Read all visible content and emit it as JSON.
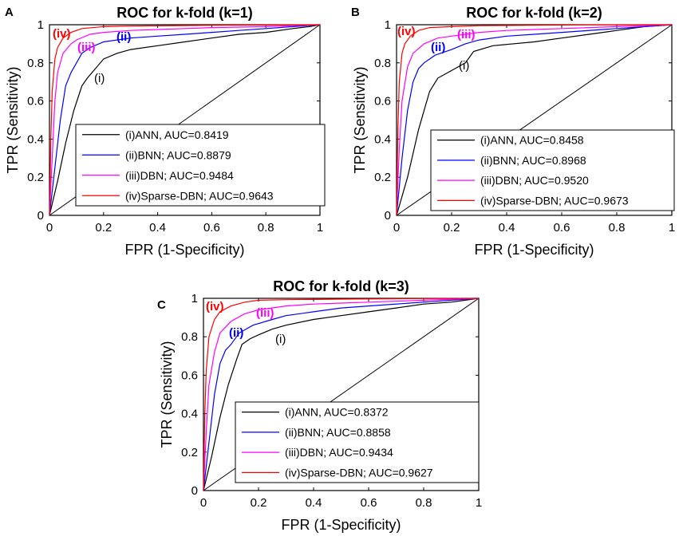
{
  "charts": [
    {
      "panel_label": "A",
      "chart_data": {
        "type": "line",
        "title": "ROC for k-fold (k=1)",
        "xlabel": "FPR (1-Specificity)",
        "ylabel": "TPR (Sensitivity)",
        "xlim": [
          0,
          1
        ],
        "ylim": [
          0,
          1
        ],
        "xticks": [
          "0",
          "0.2",
          "0.4",
          "0.6",
          "0.8",
          "1"
        ],
        "yticks": [
          "0",
          "0.2",
          "0.4",
          "0.6",
          "0.8",
          "1"
        ],
        "legend_position": "bottom-right",
        "series": [
          {
            "name": "(i)ANN, AUC=0.8419",
            "annotation": "(i)",
            "color": "#000000",
            "x": [
              0,
              0.03,
              0.06,
              0.09,
              0.12,
              0.14,
              0.17,
              0.2,
              0.25,
              0.3,
              0.4,
              0.5,
              0.6,
              0.7,
              0.8,
              0.9,
              0.96,
              1.0
            ],
            "y": [
              0,
              0.18,
              0.38,
              0.55,
              0.68,
              0.72,
              0.77,
              0.82,
              0.85,
              0.87,
              0.89,
              0.91,
              0.93,
              0.95,
              0.96,
              0.98,
              0.99,
              1.0
            ]
          },
          {
            "name": "(ii)BNN; AUC=0.8879",
            "annotation": "(ii)",
            "color": "#0000ff",
            "x": [
              0,
              0.02,
              0.04,
              0.06,
              0.08,
              0.1,
              0.12,
              0.15,
              0.2,
              0.3,
              0.4,
              0.5,
              0.6,
              0.7,
              0.8,
              0.9,
              1.0
            ],
            "y": [
              0,
              0.25,
              0.5,
              0.68,
              0.75,
              0.8,
              0.85,
              0.88,
              0.91,
              0.93,
              0.94,
              0.95,
              0.96,
              0.97,
              0.98,
              0.99,
              1.0
            ]
          },
          {
            "name": "(iii)DBN; AUC=0.9484",
            "annotation": "(iii)",
            "color": "#ff00ff",
            "x": [
              0,
              0.01,
              0.02,
              0.03,
              0.05,
              0.08,
              0.1,
              0.15,
              0.2,
              0.3,
              0.4,
              0.5,
              0.6,
              0.8,
              1.0
            ],
            "y": [
              0,
              0.3,
              0.6,
              0.75,
              0.85,
              0.9,
              0.92,
              0.95,
              0.96,
              0.97,
              0.975,
              0.98,
              0.985,
              0.99,
              1.0
            ]
          },
          {
            "name": "(iv)Sparse-DBN; AUC=0.9643",
            "annotation": "(iv)",
            "color": "#ff0000",
            "x": [
              0,
              0.005,
              0.01,
              0.02,
              0.03,
              0.05,
              0.08,
              0.12,
              0.2,
              0.3,
              0.5,
              0.7,
              1.0
            ],
            "y": [
              0,
              0.4,
              0.65,
              0.82,
              0.88,
              0.93,
              0.96,
              0.98,
              0.99,
              0.993,
              0.996,
              0.998,
              1.0
            ]
          }
        ]
      }
    },
    {
      "panel_label": "B",
      "chart_data": {
        "type": "line",
        "title": "ROC for k-fold (k=2)",
        "xlabel": "FPR (1-Specificity)",
        "ylabel": "TPR (Sensitivity)",
        "xlim": [
          0,
          1
        ],
        "ylim": [
          0,
          1
        ],
        "xticks": [
          "0",
          "0.2",
          "0.4",
          "0.6",
          "0.8",
          "1"
        ],
        "yticks": [
          "0",
          "0.2",
          "0.4",
          "0.6",
          "0.8",
          "1"
        ],
        "legend_position": "bottom-right",
        "series": [
          {
            "name": "(i)ANN, AUC=0.8458",
            "annotation": "(i)",
            "color": "#000000",
            "x": [
              0,
              0.04,
              0.08,
              0.12,
              0.15,
              0.2,
              0.25,
              0.28,
              0.35,
              0.5,
              0.6,
              0.7,
              0.8,
              0.9,
              1.0
            ],
            "y": [
              0,
              0.2,
              0.45,
              0.65,
              0.72,
              0.76,
              0.8,
              0.86,
              0.89,
              0.91,
              0.93,
              0.95,
              0.97,
              0.99,
              1.0
            ]
          },
          {
            "name": "(ii)BNN; AUC=0.8968",
            "annotation": "(ii)",
            "color": "#0000ff",
            "x": [
              0,
              0.02,
              0.04,
              0.06,
              0.08,
              0.1,
              0.14,
              0.2,
              0.25,
              0.3,
              0.4,
              0.5,
              0.6,
              0.8,
              1.0
            ],
            "y": [
              0,
              0.3,
              0.55,
              0.7,
              0.77,
              0.8,
              0.84,
              0.87,
              0.9,
              0.92,
              0.94,
              0.95,
              0.96,
              0.98,
              1.0
            ]
          },
          {
            "name": "(iii)DBN; AUC=0.9520",
            "annotation": "(iii)",
            "color": "#ff00ff",
            "x": [
              0,
              0.01,
              0.02,
              0.04,
              0.06,
              0.1,
              0.15,
              0.2,
              0.3,
              0.4,
              0.5,
              0.6,
              0.8,
              1.0
            ],
            "y": [
              0,
              0.35,
              0.6,
              0.78,
              0.85,
              0.9,
              0.93,
              0.94,
              0.96,
              0.97,
              0.975,
              0.98,
              0.99,
              1.0
            ]
          },
          {
            "name": "(iv)Sparse-DBN; AUC=0.9673",
            "annotation": "(iv)",
            "color": "#ff0000",
            "x": [
              0,
              0.005,
              0.01,
              0.02,
              0.03,
              0.05,
              0.08,
              0.12,
              0.2,
              0.3,
              0.5,
              0.7,
              1.0
            ],
            "y": [
              0,
              0.45,
              0.7,
              0.85,
              0.9,
              0.94,
              0.97,
              0.985,
              0.99,
              0.995,
              0.997,
              0.999,
              1.0
            ]
          }
        ]
      }
    },
    {
      "panel_label": "C",
      "chart_data": {
        "type": "line",
        "title": "ROC for k-fold (k=3)",
        "xlabel": "FPR (1-Specificity)",
        "ylabel": "TPR (Sensitivity)",
        "xlim": [
          0,
          1
        ],
        "ylim": [
          0,
          1
        ],
        "xticks": [
          "0",
          "0.2",
          "0.4",
          "0.6",
          "0.8",
          "1"
        ],
        "yticks": [
          "0",
          "0.2",
          "0.4",
          "0.6",
          "0.8",
          "1"
        ],
        "legend_position": "bottom-right",
        "series": [
          {
            "name": "(i)ANN, AUC=0.8372",
            "annotation": "(i)",
            "color": "#000000",
            "x": [
              0,
              0.03,
              0.06,
              0.09,
              0.12,
              0.14,
              0.17,
              0.2,
              0.25,
              0.3,
              0.4,
              0.5,
              0.6,
              0.7,
              0.8,
              0.9,
              1.0
            ],
            "y": [
              0,
              0.18,
              0.38,
              0.55,
              0.68,
              0.76,
              0.79,
              0.81,
              0.84,
              0.86,
              0.89,
              0.91,
              0.93,
              0.95,
              0.97,
              0.98,
              1.0
            ]
          },
          {
            "name": "(ii)BNN; AUC=0.8858",
            "annotation": "(ii)",
            "color": "#0000ff",
            "x": [
              0,
              0.02,
              0.04,
              0.06,
              0.08,
              0.1,
              0.13,
              0.18,
              0.25,
              0.3,
              0.4,
              0.5,
              0.6,
              0.8,
              1.0
            ],
            "y": [
              0,
              0.25,
              0.5,
              0.66,
              0.73,
              0.76,
              0.82,
              0.86,
              0.89,
              0.91,
              0.93,
              0.95,
              0.96,
              0.98,
              1.0
            ]
          },
          {
            "name": "(iii)DBN; AUC=0.9434",
            "annotation": "(iii)",
            "color": "#ff00ff",
            "x": [
              0,
              0.01,
              0.02,
              0.04,
              0.06,
              0.1,
              0.15,
              0.2,
              0.3,
              0.4,
              0.5,
              0.6,
              0.8,
              1.0
            ],
            "y": [
              0,
              0.3,
              0.55,
              0.72,
              0.82,
              0.88,
              0.92,
              0.94,
              0.96,
              0.97,
              0.975,
              0.98,
              0.99,
              1.0
            ]
          },
          {
            "name": "(iv)Sparse-DBN; AUC=0.9627",
            "annotation": "(iv)",
            "color": "#ff0000",
            "x": [
              0,
              0.005,
              0.01,
              0.02,
              0.04,
              0.06,
              0.1,
              0.15,
              0.2,
              0.3,
              0.5,
              0.7,
              1.0
            ],
            "y": [
              0,
              0.4,
              0.62,
              0.8,
              0.89,
              0.93,
              0.96,
              0.98,
              0.99,
              0.993,
              0.996,
              0.998,
              1.0
            ]
          }
        ]
      }
    }
  ]
}
